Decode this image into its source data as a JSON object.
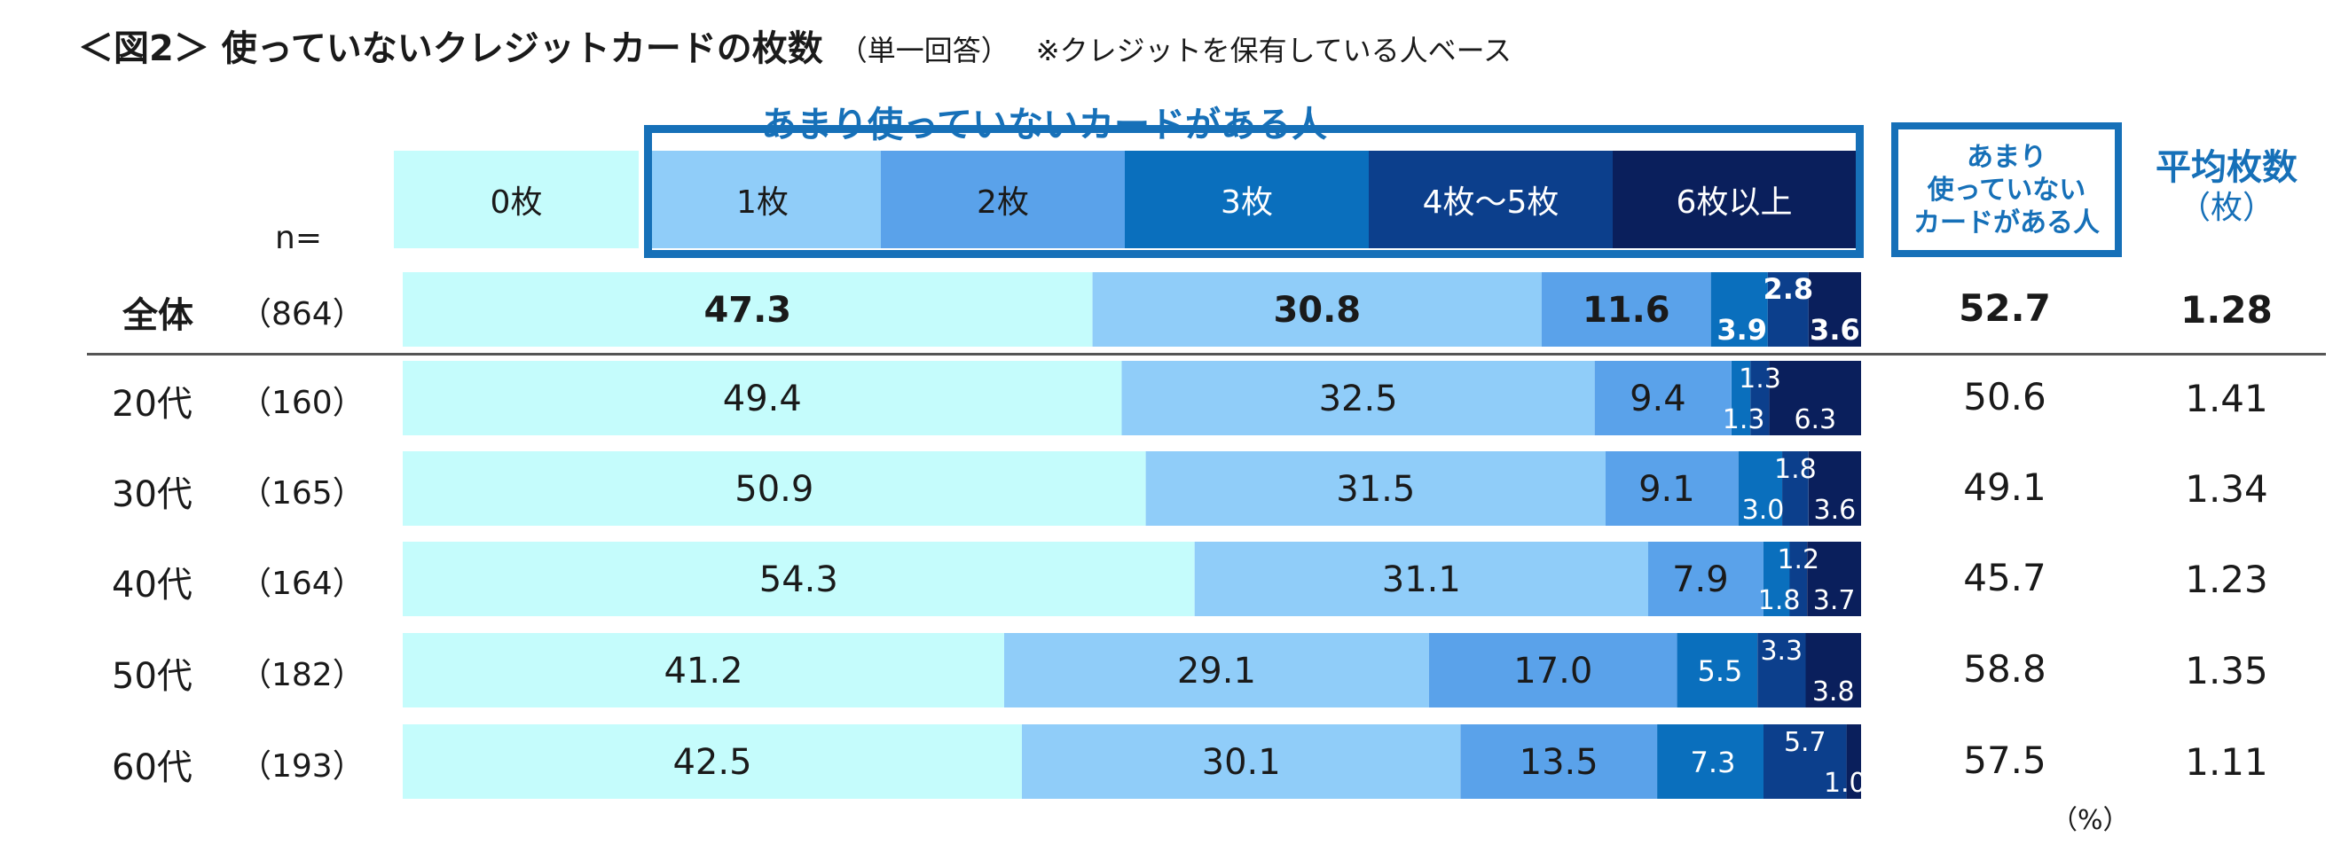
{
  "title": {
    "main": "＜図2＞ 使っていないクレジットカードの枚数",
    "sub": "（単一回答）",
    "note": "※クレジットを保有している人ベース"
  },
  "bracket_label": "あまり使っていないカードがある人",
  "n_label": "n=",
  "summary_header": "あまり\n使っていない\nカードがある人",
  "average_header": {
    "title": "平均枚数",
    "unit": "（枚）"
  },
  "unit_label": "（%）",
  "colors": {
    "c0": "#c5fcfc",
    "c1": "#90cdf9",
    "c2": "#5aa2ea",
    "c3": "#0a6fbd",
    "c4": "#0c3f8c",
    "c5": "#0a1f5c"
  },
  "chart_data": {
    "type": "bar",
    "orientation": "horizontal",
    "stacked": true,
    "normalized_100": true,
    "categories": [
      "0枚",
      "1枚",
      "2枚",
      "3枚",
      "4枚～5枚",
      "6枚以上"
    ],
    "rows": [
      {
        "label": "全体",
        "n": "（864）",
        "values": [
          47.3,
          30.8,
          11.6,
          3.9,
          2.8,
          3.6
        ],
        "labels": [
          "47.3",
          "30.8",
          "11.6",
          "3.9",
          "2.8",
          "3.6"
        ],
        "summary": "52.7",
        "average": "1.28",
        "bold": true
      },
      {
        "label": "20代",
        "n": "（160）",
        "values": [
          49.4,
          32.5,
          9.4,
          1.3,
          1.3,
          6.3
        ],
        "labels": [
          "49.4",
          "32.5",
          "9.4",
          "1.3",
          "1.3",
          "6.3"
        ],
        "summary": "50.6",
        "average": "1.41",
        "bold": false
      },
      {
        "label": "30代",
        "n": "（165）",
        "values": [
          50.9,
          31.5,
          9.1,
          3.0,
          1.8,
          3.6
        ],
        "labels": [
          "50.9",
          "31.5",
          "9.1",
          "3.0",
          "1.8",
          "3.6"
        ],
        "summary": "49.1",
        "average": "1.34",
        "bold": false
      },
      {
        "label": "40代",
        "n": "（164）",
        "values": [
          54.3,
          31.1,
          7.9,
          1.8,
          1.2,
          3.7
        ],
        "labels": [
          "54.3",
          "31.1",
          "7.9",
          "1.8",
          "1.2",
          "3.7"
        ],
        "summary": "45.7",
        "average": "1.23",
        "bold": false
      },
      {
        "label": "50代",
        "n": "（182）",
        "values": [
          41.2,
          29.1,
          17.0,
          5.5,
          3.3,
          3.8
        ],
        "labels": [
          "41.2",
          "29.1",
          "17.0",
          "5.5",
          "3.3",
          "3.8"
        ],
        "summary": "58.8",
        "average": "1.35",
        "bold": false
      },
      {
        "label": "60代",
        "n": "（193）",
        "values": [
          42.5,
          30.1,
          13.5,
          7.3,
          5.7,
          1.0
        ],
        "labels": [
          "42.5",
          "30.1",
          "13.5",
          "7.3",
          "5.7",
          "1.0"
        ],
        "summary": "57.5",
        "average": "1.11",
        "bold": false
      }
    ],
    "xlim": [
      0,
      100
    ],
    "grid": false,
    "legend": "top"
  }
}
